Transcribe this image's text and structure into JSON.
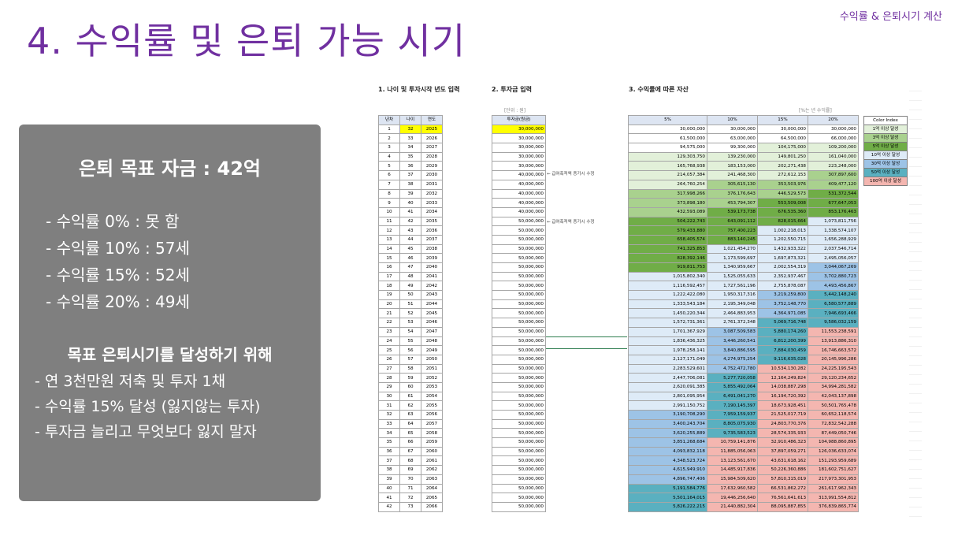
{
  "header": {
    "top_right": "수익률 & 은퇴시기 계산",
    "title": "4. 수익률 및 은퇴 가능 시기"
  },
  "panel": {
    "goal": "은퇴 목표 자금 : 42억",
    "rates": [
      "- 수익률    0% : 못 함",
      "- 수익률 10% : 57세",
      "- 수익률 15% : 52세",
      "- 수익률 20% : 49세"
    ],
    "subtitle": "목표 은퇴시기를 달성하기 위해",
    "tips": [
      "- 연 3천만원 저축 및 투자 1채",
      "- 수익률 15% 달성 (잃지않는 투자)",
      "- 투자금 늘리고 무엇보다 잃지 말자"
    ]
  },
  "sheet": {
    "section1": "1. 나이 및 투자시작 년도 입력",
    "section2": "2. 투자금 입력",
    "section3": "3. 수익률에 따른 자산",
    "unit_note": "[단위 : 원]",
    "rate_note": "[%는 년 수익률]",
    "col_headers": {
      "year_no": "년차",
      "age": "나이",
      "year": "연도",
      "invest": "투자금(원금)",
      "r5": "5%",
      "r10": "10%",
      "r15": "15%",
      "r20": "20%"
    },
    "annotations": [
      "← 급여축적액 증가시 수정",
      "← 급여축적액 증가시 수정"
    ],
    "rows": [
      [
        1,
        32,
        2025,
        "30,000,000",
        "30,000,000",
        "30,000,000",
        "30,000,000",
        "30,000,000"
      ],
      [
        2,
        33,
        2026,
        "30,000,000",
        "61,500,000",
        "63,000,000",
        "64,500,000",
        "66,000,000"
      ],
      [
        3,
        34,
        2027,
        "30,000,000",
        "94,575,000",
        "99,300,000",
        "104,175,000",
        "109,200,000"
      ],
      [
        4,
        35,
        2028,
        "30,000,000",
        "129,303,750",
        "139,230,000",
        "149,801,250",
        "161,040,000"
      ],
      [
        5,
        36,
        2029,
        "30,000,000",
        "165,768,938",
        "183,153,000",
        "202,271,438",
        "223,248,000"
      ],
      [
        6,
        37,
        2030,
        "40,000,000",
        "214,057,384",
        "241,468,300",
        "272,612,153",
        "307,897,600"
      ],
      [
        7,
        38,
        2031,
        "40,000,000",
        "264,760,254",
        "305,615,130",
        "353,503,976",
        "409,477,120"
      ],
      [
        8,
        39,
        2032,
        "40,000,000",
        "317,998,266",
        "376,176,643",
        "446,529,573",
        "531,372,544"
      ],
      [
        9,
        40,
        2033,
        "40,000,000",
        "373,898,180",
        "453,794,307",
        "553,509,008",
        "677,647,053"
      ],
      [
        10,
        41,
        2034,
        "40,000,000",
        "432,593,089",
        "539,173,738",
        "676,535,360",
        "853,176,463"
      ],
      [
        11,
        42,
        2035,
        "50,000,000",
        "504,222,743",
        "643,091,112",
        "828,015,664",
        "1,073,811,756"
      ],
      [
        12,
        43,
        2036,
        "50,000,000",
        "579,433,880",
        "757,400,223",
        "1,002,218,013",
        "1,338,574,107"
      ],
      [
        13,
        44,
        2037,
        "50,000,000",
        "658,405,574",
        "883,140,245",
        "1,202,550,715",
        "1,656,288,929"
      ],
      [
        14,
        45,
        2038,
        "50,000,000",
        "741,325,853",
        "1,021,454,270",
        "1,432,933,322",
        "2,037,546,714"
      ],
      [
        15,
        46,
        2039,
        "50,000,000",
        "828,392,146",
        "1,173,599,697",
        "1,697,873,321",
        "2,495,056,057"
      ],
      [
        16,
        47,
        2040,
        "50,000,000",
        "919,811,753",
        "1,340,959,667",
        "2,002,554,319",
        "3,044,067,269"
      ],
      [
        17,
        48,
        2041,
        "50,000,000",
        "1,015,802,340",
        "1,525,055,633",
        "2,352,937,467",
        "3,702,880,723"
      ],
      [
        18,
        49,
        2042,
        "50,000,000",
        "1,116,592,457",
        "1,727,561,196",
        "2,755,878,087",
        "4,493,456,867"
      ],
      [
        19,
        50,
        2043,
        "50,000,000",
        "1,222,422,080",
        "1,950,317,316",
        "3,219,259,800",
        "5,442,148,240"
      ],
      [
        20,
        51,
        2044,
        "50,000,000",
        "1,333,543,184",
        "2,195,349,048",
        "3,752,148,770",
        "6,580,577,889"
      ],
      [
        21,
        52,
        2045,
        "50,000,000",
        "1,450,220,344",
        "2,464,883,953",
        "4,364,971,085",
        "7,946,693,466"
      ],
      [
        22,
        53,
        2046,
        "50,000,000",
        "1,572,731,361",
        "2,761,372,348",
        "5,069,716,748",
        "9,586,032,159"
      ],
      [
        23,
        54,
        2047,
        "50,000,000",
        "1,701,367,929",
        "3,087,509,583",
        "5,880,174,260",
        "11,553,238,591"
      ],
      [
        24,
        55,
        2048,
        "50,000,000",
        "1,836,436,325",
        "3,446,260,541",
        "6,812,200,399",
        "13,913,886,310"
      ],
      [
        25,
        56,
        2049,
        "50,000,000",
        "1,978,258,141",
        "3,840,886,595",
        "7,884,030,459",
        "16,746,663,572"
      ],
      [
        26,
        57,
        2050,
        "50,000,000",
        "2,127,171,049",
        "4,274,975,254",
        "9,116,635,028",
        "20,145,996,286"
      ],
      [
        27,
        58,
        2051,
        "50,000,000",
        "2,283,529,601",
        "4,752,472,780",
        "10,534,130,282",
        "24,225,195,543"
      ],
      [
        28,
        59,
        2052,
        "50,000,000",
        "2,447,706,081",
        "5,277,720,058",
        "12,164,249,824",
        "29,120,234,652"
      ],
      [
        29,
        60,
        2053,
        "50,000,000",
        "2,620,091,385",
        "5,855,492,064",
        "14,038,887,298",
        "34,994,281,582"
      ],
      [
        30,
        61,
        2054,
        "50,000,000",
        "2,801,095,954",
        "6,491,041,270",
        "16,194,720,392",
        "42,043,137,898"
      ],
      [
        31,
        62,
        2055,
        "50,000,000",
        "2,991,150,752",
        "7,190,145,397",
        "18,673,928,451",
        "50,501,765,478"
      ],
      [
        32,
        63,
        2056,
        "50,000,000",
        "3,190,708,290",
        "7,959,159,937",
        "21,525,017,719",
        "60,652,118,574"
      ],
      [
        33,
        64,
        2057,
        "50,000,000",
        "3,400,243,704",
        "8,805,075,930",
        "24,803,770,376",
        "72,832,542,288"
      ],
      [
        34,
        65,
        2058,
        "50,000,000",
        "3,620,255,889",
        "9,735,583,523",
        "28,574,335,933",
        "87,449,050,746"
      ],
      [
        35,
        66,
        2059,
        "50,000,000",
        "3,851,268,684",
        "10,759,141,876",
        "32,910,486,323",
        "104,988,860,895"
      ],
      [
        36,
        67,
        2060,
        "50,000,000",
        "4,093,832,118",
        "11,885,056,063",
        "37,897,059,271",
        "126,036,633,074"
      ],
      [
        37,
        68,
        2061,
        "50,000,000",
        "4,348,523,724",
        "13,123,561,670",
        "43,631,618,162",
        "151,293,959,689"
      ],
      [
        38,
        69,
        2062,
        "50,000,000",
        "4,615,949,910",
        "14,485,917,836",
        "50,226,360,886",
        "181,602,751,627"
      ],
      [
        39,
        70,
        2063,
        "50,000,000",
        "4,896,747,406",
        "15,984,509,620",
        "57,810,315,019",
        "217,973,301,953"
      ],
      [
        40,
        71,
        2064,
        "50,000,000",
        "5,191,584,776",
        "17,632,960,582",
        "66,531,862,272",
        "261,617,962,343"
      ],
      [
        41,
        72,
        2065,
        "50,000,000",
        "5,501,164,015",
        "19,446,256,640",
        "76,561,641,613",
        "313,991,554,812"
      ],
      [
        42,
        73,
        2066,
        "50,000,000",
        "5,826,222,215",
        "21,440,882,304",
        "88,095,887,855",
        "376,839,865,774"
      ]
    ],
    "legend": [
      {
        "label": "Color Index",
        "color": "#ffffff"
      },
      {
        "label": "1억 이상 달성",
        "color": "#e2f0d9"
      },
      {
        "label": "3억 이상 달성",
        "color": "#a9d18e"
      },
      {
        "label": "5억 이상 달성",
        "color": "#70ad47"
      },
      {
        "label": "10억 이상 달성",
        "color": "#deebf7"
      },
      {
        "label": "30억 이상 달성",
        "color": "#9dc3e6"
      },
      {
        "label": "50억 이상 달성",
        "color": "#5ab0c0"
      },
      {
        "label": "100억 이상 달성",
        "color": "#f4b6b0"
      }
    ]
  }
}
